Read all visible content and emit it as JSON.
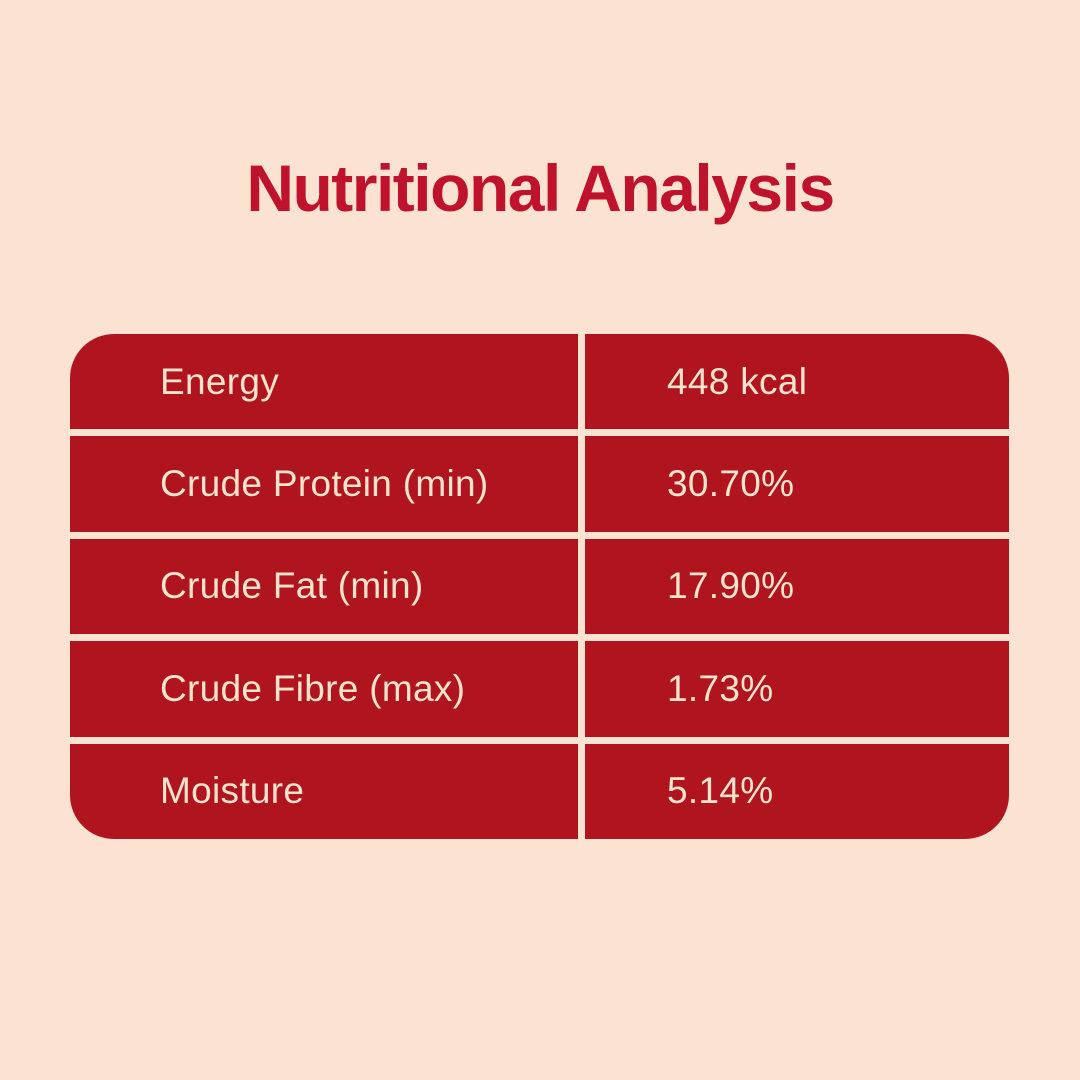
{
  "page": {
    "kind": "nutrition-infographic"
  },
  "colors": {
    "background": "#FCE2D0",
    "table_red": "#B0141F",
    "title_red": "#BE122D",
    "cell_text": "#F8E3CD"
  },
  "title": {
    "text": "Nutritional Analysis"
  },
  "table": {
    "rows": [
      {
        "label": "Energy",
        "value": "448 kcal"
      },
      {
        "label": "Crude Protein (min)",
        "value": "30.70%"
      },
      {
        "label": "Crude Fat (min)",
        "value": "17.90%"
      },
      {
        "label": "Crude Fibre (max)",
        "value": "1.73%"
      },
      {
        "label": "Moisture",
        "value": "5.14%"
      }
    ]
  }
}
